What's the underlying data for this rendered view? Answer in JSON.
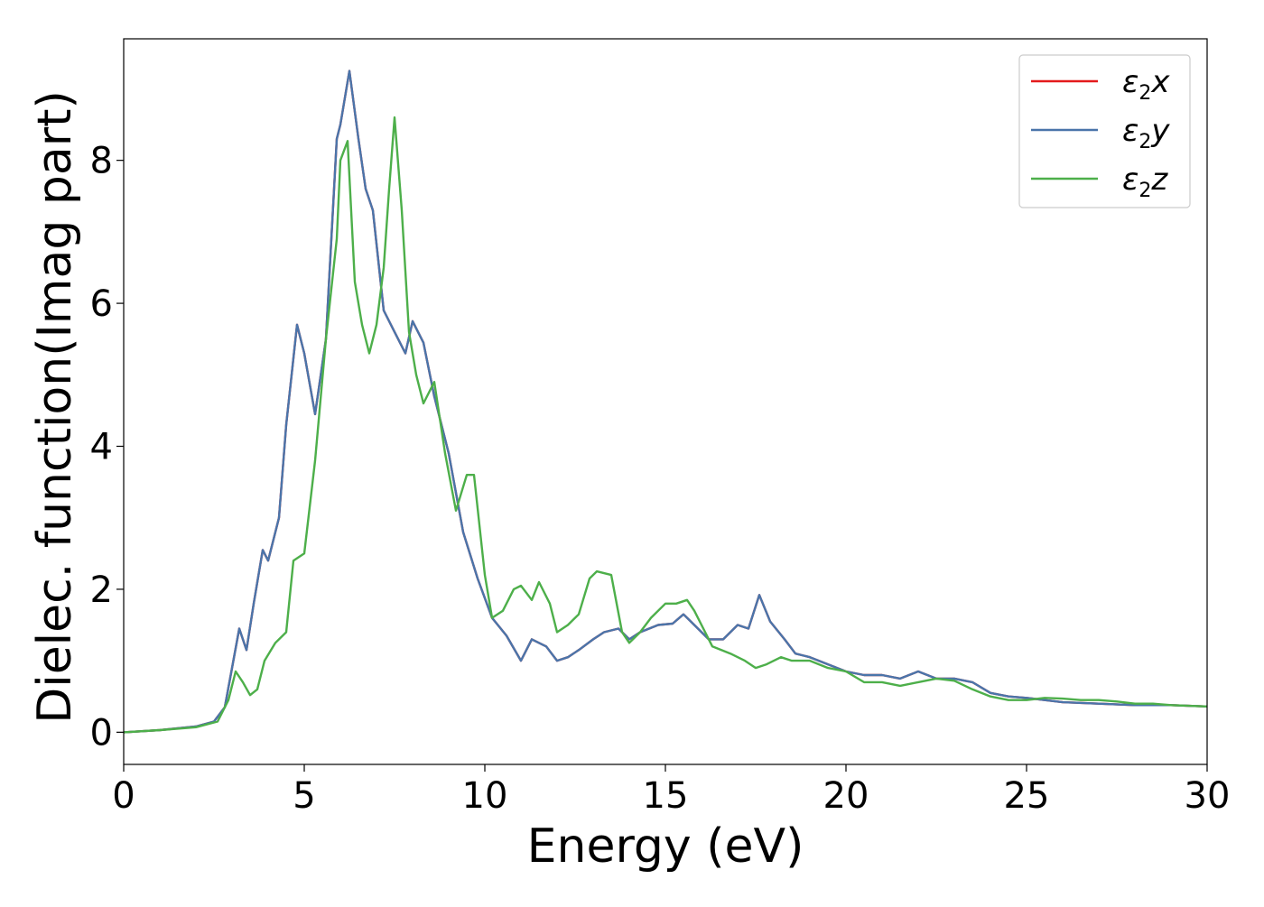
{
  "chart_data": {
    "type": "line",
    "xlabel": "Energy (eV)",
    "ylabel": "Dielec. function(Imag part)",
    "xlim": [
      0,
      30
    ],
    "ylim": [
      -0.45,
      9.7
    ],
    "xticks": [
      0,
      5,
      10,
      15,
      20,
      25,
      30
    ],
    "yticks": [
      0,
      2,
      4,
      6,
      8
    ],
    "grid": false,
    "legend_position": "top-right",
    "series": [
      {
        "name": "ε2x",
        "legend": {
          "base": "ε",
          "sub": "2",
          "tail": "x"
        },
        "color": "#e41a1c",
        "x": [
          0,
          1,
          2,
          2.5,
          2.8,
          3.0,
          3.2,
          3.4,
          3.6,
          3.85,
          4.0,
          4.3,
          4.5,
          4.8,
          5.0,
          5.3,
          5.6,
          5.9,
          6.0,
          6.25,
          6.5,
          6.7,
          6.9,
          7.2,
          7.5,
          7.8,
          8.0,
          8.3,
          8.6,
          9.0,
          9.4,
          9.8,
          10.2,
          10.6,
          11.0,
          11.3,
          11.7,
          12.0,
          12.3,
          12.6,
          13.0,
          13.3,
          13.7,
          14.0,
          14.3,
          14.8,
          15.2,
          15.5,
          15.8,
          16.2,
          16.6,
          17.0,
          17.3,
          17.6,
          17.9,
          18.3,
          18.6,
          19.0,
          19.5,
          20,
          20.5,
          21,
          21.5,
          22,
          22.5,
          23,
          23.5,
          24,
          24.5,
          25,
          25.5,
          26,
          27,
          28,
          29,
          30
        ],
        "values": [
          0.0,
          0.03,
          0.08,
          0.15,
          0.35,
          0.9,
          1.45,
          1.15,
          1.8,
          2.55,
          2.4,
          3.0,
          4.3,
          5.7,
          5.3,
          4.45,
          5.5,
          8.3,
          8.5,
          9.25,
          8.3,
          7.6,
          7.3,
          5.9,
          5.6,
          5.3,
          5.75,
          5.45,
          4.7,
          3.9,
          2.8,
          2.15,
          1.6,
          1.35,
          1.0,
          1.3,
          1.2,
          1.0,
          1.05,
          1.15,
          1.3,
          1.4,
          1.45,
          1.3,
          1.4,
          1.5,
          1.52,
          1.65,
          1.5,
          1.3,
          1.3,
          1.5,
          1.45,
          1.92,
          1.55,
          1.3,
          1.1,
          1.05,
          0.95,
          0.85,
          0.8,
          0.8,
          0.75,
          0.85,
          0.75,
          0.75,
          0.7,
          0.55,
          0.5,
          0.48,
          0.45,
          0.42,
          0.4,
          0.38,
          0.38,
          0.36
        ]
      },
      {
        "name": "ε2y",
        "legend": {
          "base": "ε",
          "sub": "2",
          "tail": "y"
        },
        "color": "#4a75aa",
        "x": [
          0,
          1,
          2,
          2.5,
          2.8,
          3.0,
          3.2,
          3.4,
          3.6,
          3.85,
          4.0,
          4.3,
          4.5,
          4.8,
          5.0,
          5.3,
          5.6,
          5.9,
          6.0,
          6.25,
          6.5,
          6.7,
          6.9,
          7.2,
          7.5,
          7.8,
          8.0,
          8.3,
          8.6,
          9.0,
          9.4,
          9.8,
          10.2,
          10.6,
          11.0,
          11.3,
          11.7,
          12.0,
          12.3,
          12.6,
          13.0,
          13.3,
          13.7,
          14.0,
          14.3,
          14.8,
          15.2,
          15.5,
          15.8,
          16.2,
          16.6,
          17.0,
          17.3,
          17.6,
          17.9,
          18.3,
          18.6,
          19.0,
          19.5,
          20,
          20.5,
          21,
          21.5,
          22,
          22.5,
          23,
          23.5,
          24,
          24.5,
          25,
          25.5,
          26,
          27,
          28,
          29,
          30
        ],
        "values": [
          0.0,
          0.03,
          0.08,
          0.15,
          0.35,
          0.9,
          1.45,
          1.15,
          1.8,
          2.55,
          2.4,
          3.0,
          4.3,
          5.7,
          5.3,
          4.45,
          5.5,
          8.3,
          8.5,
          9.25,
          8.3,
          7.6,
          7.3,
          5.9,
          5.6,
          5.3,
          5.75,
          5.45,
          4.7,
          3.9,
          2.8,
          2.15,
          1.6,
          1.35,
          1.0,
          1.3,
          1.2,
          1.0,
          1.05,
          1.15,
          1.3,
          1.4,
          1.45,
          1.3,
          1.4,
          1.5,
          1.52,
          1.65,
          1.5,
          1.3,
          1.3,
          1.5,
          1.45,
          1.92,
          1.55,
          1.3,
          1.1,
          1.05,
          0.95,
          0.85,
          0.8,
          0.8,
          0.75,
          0.85,
          0.75,
          0.75,
          0.7,
          0.55,
          0.5,
          0.48,
          0.45,
          0.42,
          0.4,
          0.38,
          0.38,
          0.36
        ]
      },
      {
        "name": "ε2z",
        "legend": {
          "base": "ε",
          "sub": "2",
          "tail": "z"
        },
        "color": "#4daf4a",
        "x": [
          0,
          1,
          2,
          2.6,
          2.9,
          3.1,
          3.3,
          3.5,
          3.7,
          3.9,
          4.2,
          4.5,
          4.7,
          5.0,
          5.3,
          5.6,
          5.9,
          6.0,
          6.2,
          6.4,
          6.6,
          6.8,
          7.0,
          7.2,
          7.35,
          7.5,
          7.7,
          7.9,
          8.1,
          8.3,
          8.6,
          8.9,
          9.2,
          9.5,
          9.7,
          10.0,
          10.2,
          10.5,
          10.8,
          11.0,
          11.3,
          11.5,
          11.8,
          12.0,
          12.3,
          12.6,
          12.9,
          13.1,
          13.5,
          13.8,
          14.0,
          14.3,
          14.6,
          15.0,
          15.3,
          15.6,
          15.8,
          16.0,
          16.3,
          16.8,
          17.2,
          17.5,
          17.8,
          18.2,
          18.5,
          19.0,
          19.5,
          20,
          20.5,
          21,
          21.5,
          22,
          22.5,
          23,
          23.5,
          24,
          24.5,
          25,
          25.5,
          26,
          26.5,
          27,
          27.5,
          28,
          28.5,
          29,
          30
        ],
        "values": [
          0.0,
          0.03,
          0.07,
          0.15,
          0.45,
          0.85,
          0.7,
          0.52,
          0.6,
          1.0,
          1.25,
          1.4,
          2.4,
          2.5,
          3.8,
          5.5,
          6.9,
          8.0,
          8.27,
          6.3,
          5.7,
          5.3,
          5.7,
          6.5,
          7.6,
          8.6,
          7.3,
          5.6,
          5.0,
          4.6,
          4.9,
          3.9,
          3.1,
          3.6,
          3.6,
          2.2,
          1.6,
          1.7,
          2.0,
          2.05,
          1.85,
          2.1,
          1.8,
          1.4,
          1.5,
          1.65,
          2.15,
          2.25,
          2.2,
          1.4,
          1.25,
          1.4,
          1.6,
          1.8,
          1.8,
          1.85,
          1.7,
          1.5,
          1.2,
          1.1,
          1.0,
          0.9,
          0.95,
          1.05,
          1.0,
          1.0,
          0.9,
          0.85,
          0.7,
          0.7,
          0.65,
          0.7,
          0.75,
          0.72,
          0.6,
          0.5,
          0.45,
          0.45,
          0.48,
          0.47,
          0.45,
          0.45,
          0.43,
          0.4,
          0.4,
          0.38,
          0.36
        ]
      }
    ]
  }
}
